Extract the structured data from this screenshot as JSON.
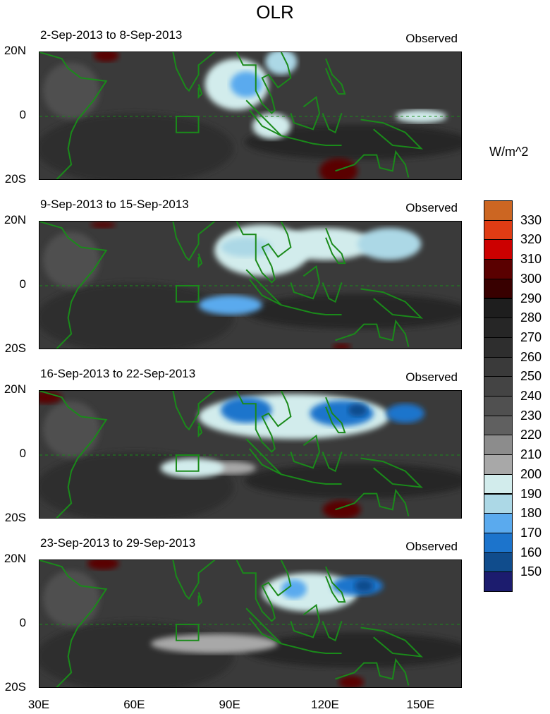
{
  "title": "OLR",
  "units": "W/m^2",
  "lat_labels": [
    "20N",
    "0",
    "20S"
  ],
  "lon_labels": [
    "30E",
    "60E",
    "90E",
    "120E",
    "150E"
  ],
  "colorbar": {
    "labels": [
      "330",
      "320",
      "310",
      "300",
      "290",
      "280",
      "270",
      "260",
      "250",
      "240",
      "230",
      "220",
      "210",
      "200",
      "190",
      "180",
      "170",
      "160",
      "150"
    ],
    "colors": [
      "#cc6622",
      "#e03c14",
      "#cc0000",
      "#5a0000",
      "#380000",
      "#1e1e1e",
      "#262626",
      "#2e2e2e",
      "#3a3a3a",
      "#444444",
      "#505050",
      "#606060",
      "#8c8c8c",
      "#a8a8a8",
      "#d2ecec",
      "#acd8e6",
      "#5aaaee",
      "#1c74cc",
      "#104c8c",
      "#1c1c6e"
    ]
  },
  "chart_data": {
    "type": "heatmap",
    "variable": "OLR",
    "units": "W/m^2",
    "lon_range": [
      30,
      163
    ],
    "lat_range": [
      -20,
      20
    ],
    "panels": [
      {
        "title": "2-Sep-2013 to 8-Sep-2013",
        "label": "Observed",
        "features": [
          [
            92,
            10,
            10,
            8,
            195
          ],
          [
            95,
            10,
            5,
            4,
            175
          ],
          [
            103,
            -3,
            6,
            4,
            195
          ],
          [
            106,
            17,
            5,
            4,
            185
          ],
          [
            150,
            0,
            8,
            2,
            195
          ],
          [
            51,
            19,
            4,
            2,
            305
          ],
          [
            124,
            -17,
            6,
            4,
            305
          ]
        ]
      },
      {
        "title": "9-Sep-2013 to 15-Sep-2013",
        "label": "Observed",
        "features": [
          [
            100,
            11,
            15,
            8,
            195
          ],
          [
            120,
            13,
            15,
            5,
            195
          ],
          [
            95,
            12,
            8,
            3,
            185
          ],
          [
            140,
            13,
            10,
            5,
            185
          ],
          [
            90,
            -6,
            10,
            3,
            175
          ],
          [
            50,
            19,
            4,
            1,
            305
          ],
          [
            125,
            -19,
            3,
            1,
            305
          ]
        ]
      },
      {
        "title": "16-Sep-2013 to 22-Sep-2013",
        "label": "Observed",
        "features": [
          [
            110,
            12,
            30,
            7,
            195
          ],
          [
            95,
            14,
            8,
            4,
            165
          ],
          [
            125,
            13,
            10,
            4,
            165
          ],
          [
            145,
            13,
            6,
            3,
            165
          ],
          [
            130,
            14,
            3,
            2,
            155
          ],
          [
            78,
            -4,
            10,
            3,
            195
          ],
          [
            90,
            -4,
            8,
            2,
            205
          ],
          [
            125,
            -17,
            6,
            3,
            305
          ],
          [
            32,
            18,
            5,
            2,
            305
          ]
        ]
      },
      {
        "title": "23-Sep-2013 to 29-Sep-2013",
        "label": "Observed",
        "features": [
          [
            115,
            10,
            15,
            6,
            195
          ],
          [
            110,
            11,
            4,
            3,
            175
          ],
          [
            130,
            12,
            8,
            3,
            165
          ],
          [
            132,
            12,
            3,
            2,
            155
          ],
          [
            85,
            -6,
            20,
            3,
            205
          ],
          [
            50,
            19,
            5,
            2,
            305
          ],
          [
            128,
            -18,
            4,
            2,
            305
          ]
        ]
      }
    ]
  }
}
